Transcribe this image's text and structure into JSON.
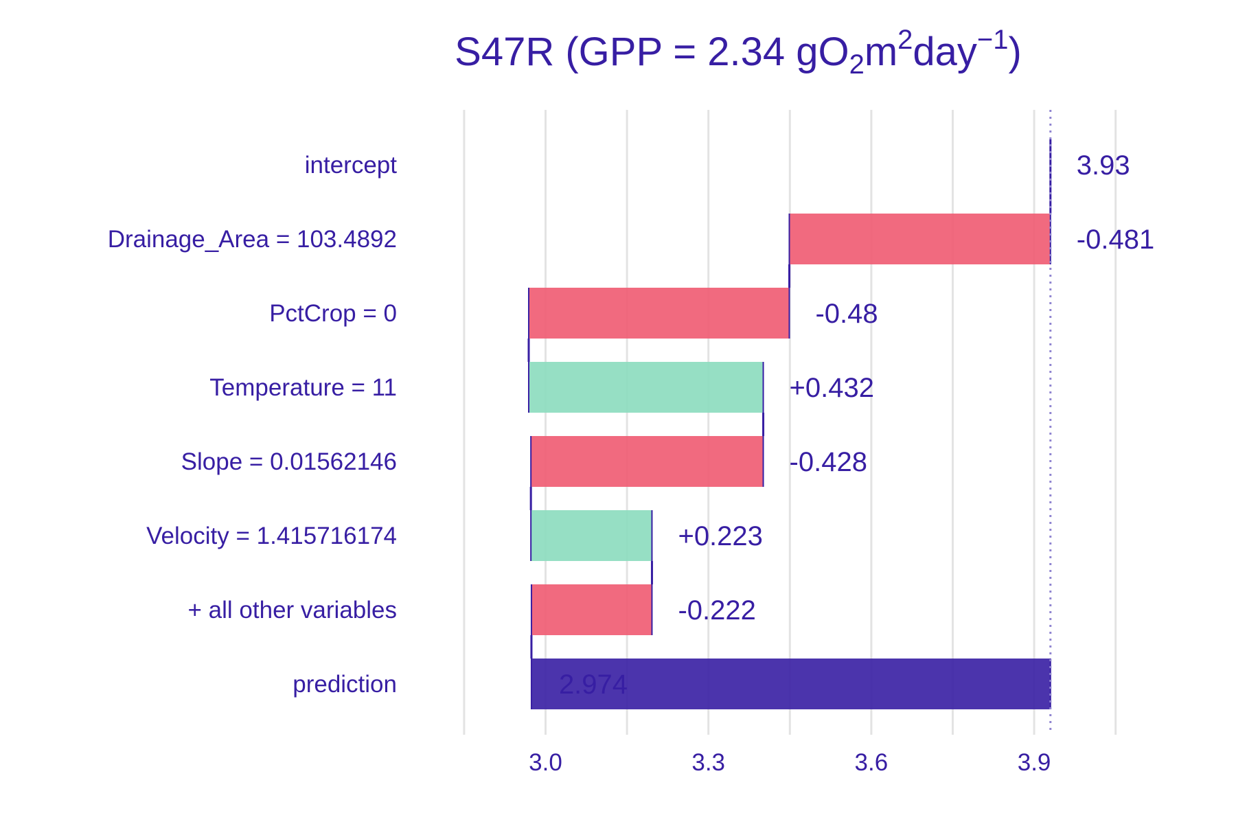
{
  "chart_data": {
    "type": "waterfall",
    "title": {
      "prefix": "S47R (GPP = 2.34 gO",
      "sub": "2",
      "mid": "m",
      "sup1": "2",
      "day": "day",
      "sup2": "−1",
      "suffix": ")"
    },
    "xlim": [
      2.84,
      4.12
    ],
    "xticks": [
      {
        "value": 3.0,
        "label": "3.0"
      },
      {
        "value": 3.3,
        "label": "3.3"
      },
      {
        "value": 3.6,
        "label": "3.6"
      },
      {
        "value": 3.9,
        "label": "3.9"
      }
    ],
    "grid_lines": [
      2.85,
      3.0,
      3.15,
      3.3,
      3.45,
      3.6,
      3.75,
      3.9,
      4.05
    ],
    "grid": true,
    "reference_line": 3.93,
    "rows": [
      {
        "label": "intercept",
        "start": 3.93,
        "end": 3.93,
        "value_label": "3.93",
        "kind": "intercept"
      },
      {
        "label": "Drainage_Area = 103.4892",
        "start": 3.93,
        "end": 3.449,
        "value_label": "-0.481",
        "kind": "negative"
      },
      {
        "label": "PctCrop = 0",
        "start": 3.449,
        "end": 2.969,
        "value_label": "-0.48",
        "kind": "negative"
      },
      {
        "label": "Temperature = 11",
        "start": 2.969,
        "end": 3.401,
        "value_label": "+0.432",
        "kind": "positive"
      },
      {
        "label": "Slope = 0.01562146",
        "start": 3.401,
        "end": 2.973,
        "value_label": "-0.428",
        "kind": "negative"
      },
      {
        "label": "Velocity = 1.415716174",
        "start": 2.973,
        "end": 3.196,
        "value_label": "+0.223",
        "kind": "positive"
      },
      {
        "label": "+ all other variables",
        "start": 3.196,
        "end": 2.974,
        "value_label": "-0.222",
        "kind": "negative"
      },
      {
        "label": "prediction",
        "start": 2.974,
        "end": 3.93,
        "value_label": "2.974",
        "kind": "prediction"
      }
    ],
    "colors": {
      "text": "#371EA3",
      "negative": "#F05A71",
      "positive": "#8BDCBE",
      "prediction": "#371EA3",
      "connector": "#371EA3",
      "grid": "#E3E3E3",
      "reference": "#8F84D0"
    }
  }
}
